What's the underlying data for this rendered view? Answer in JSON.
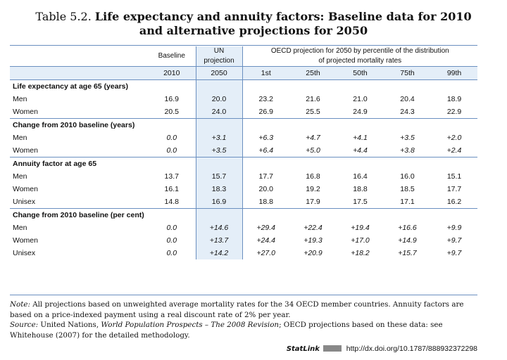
{
  "title": {
    "number": "Table 5.2.",
    "line1": "Life expectancy and annuity factors: Baseline data for 2010",
    "line2": "and alternative projections for 2050"
  },
  "headers": {
    "baseline": "Baseline",
    "un_line1": "UN",
    "un_line2": "projection",
    "oecd_line1": "OECD projection for 2050 by percentile of the distribution",
    "oecd_line2": "of projected mortality rates",
    "years": [
      "2010",
      "2050",
      "1st",
      "25th",
      "50th",
      "75th",
      "99th"
    ]
  },
  "sections": [
    {
      "title": "Life expectancy at age 65 (years)",
      "italic": false,
      "rows": [
        {
          "label": "Men",
          "values": [
            "16.9",
            "20.0",
            "23.2",
            "21.6",
            "21.0",
            "20.4",
            "18.9"
          ]
        },
        {
          "label": "Women",
          "values": [
            "20.5",
            "24.0",
            "26.9",
            "25.5",
            "24.9",
            "24.3",
            "22.9"
          ]
        }
      ]
    },
    {
      "title": "Change from 2010 baseline (years)",
      "italic": true,
      "rows": [
        {
          "label": "Men",
          "values": [
            "0.0",
            "+3.1",
            "+6.3",
            "+4.7",
            "+4.1",
            "+3.5",
            "+2.0"
          ]
        },
        {
          "label": "Women",
          "values": [
            "0.0",
            "+3.5",
            "+6.4",
            "+5.0",
            "+4.4",
            "+3.8",
            "+2.4"
          ]
        }
      ]
    },
    {
      "title": "Annuity factor at age 65",
      "italic": false,
      "rows": [
        {
          "label": "Men",
          "values": [
            "13.7",
            "15.7",
            "17.7",
            "16.8",
            "16.4",
            "16.0",
            "15.1"
          ]
        },
        {
          "label": "Women",
          "values": [
            "16.1",
            "18.3",
            "20.0",
            "19.2",
            "18.8",
            "18.5",
            "17.7"
          ]
        },
        {
          "label": "Unisex",
          "values": [
            "14.8",
            "16.9",
            "18.8",
            "17.9",
            "17.5",
            "17.1",
            "16.2"
          ]
        }
      ]
    },
    {
      "title": "Change from 2010 baseline (per cent)",
      "italic": true,
      "rows": [
        {
          "label": "Men",
          "values": [
            "0.0",
            "+14.6",
            "+29.4",
            "+22.4",
            "+19.4",
            "+16.6",
            "+9.9"
          ]
        },
        {
          "label": "Women",
          "values": [
            "0.0",
            "+13.7",
            "+24.4",
            "+19.3",
            "+17.0",
            "+14.9",
            "+9.7"
          ]
        },
        {
          "label": "Unisex",
          "values": [
            "0.0",
            "+14.2",
            "+27.0",
            "+20.9",
            "+18.2",
            "+15.7",
            "+9.7"
          ]
        }
      ]
    }
  ],
  "notes": {
    "note_label": "Note:",
    "note_text": "All projections based on unweighted average mortality rates for the 34 OECD member countries. Annuity factors are based on a price-indexed payment using a real discount rate of 2% per year.",
    "source_label": "Source:",
    "source_text_1": "United Nations,",
    "source_title": "World Population Prospects – The 2008 Revision",
    "source_text_2": "; OECD projections based on these data: see Whitehouse (2007) for the detailed methodology."
  },
  "statlink": {
    "brand": "StatLink",
    "url": "http://dx.doi.org/10.1787/888932372298"
  },
  "colors": {
    "rule": "#6a8fc0",
    "shade": "#e4eef8"
  }
}
